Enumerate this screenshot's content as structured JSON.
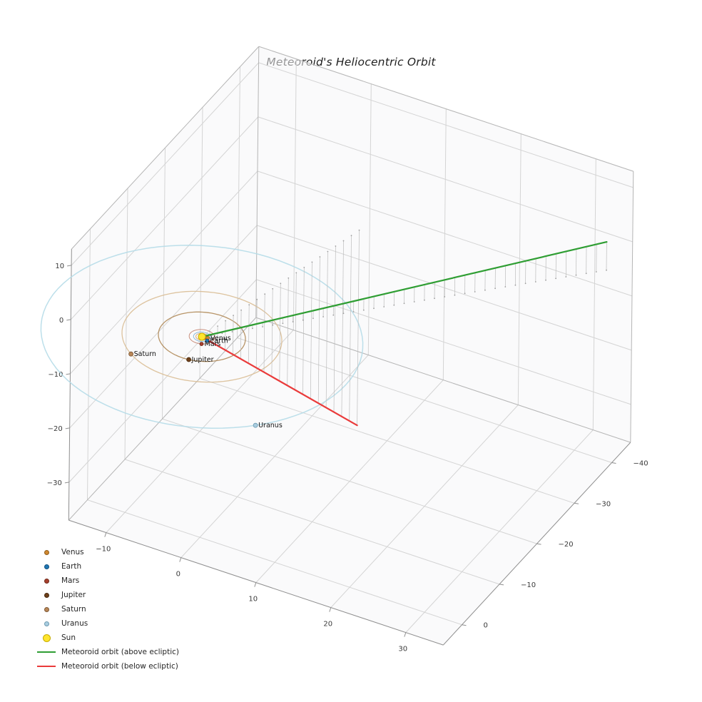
{
  "chart_data": {
    "type": "line",
    "subtype": "3d-orbit-plot",
    "title": "Meteoroid's Heliocentric Orbit",
    "grid": true,
    "legend_position": "lower-left",
    "axes": {
      "x": {
        "range": [
          -15,
          35
        ],
        "ticks": [
          {
            "v": -10,
            "label": "−10"
          },
          {
            "v": 0,
            "label": "0"
          },
          {
            "v": 10,
            "label": "10"
          },
          {
            "v": 20,
            "label": "20"
          },
          {
            "v": 30,
            "label": "30"
          }
        ]
      },
      "y": {
        "range": [
          -45,
          5
        ],
        "ticks": [
          {
            "v": -40,
            "label": "−40"
          },
          {
            "v": -30,
            "label": "−30"
          },
          {
            "v": -20,
            "label": "−20"
          },
          {
            "v": -10,
            "label": "−10"
          },
          {
            "v": 0,
            "label": "0"
          }
        ]
      },
      "z": {
        "range": [
          -37,
          13
        ],
        "ticks": [
          {
            "v": 10,
            "label": "10"
          },
          {
            "v": 0,
            "label": "0"
          },
          {
            "v": -10,
            "label": "−10"
          },
          {
            "v": -20,
            "label": "−20"
          },
          {
            "v": -30,
            "label": "−30"
          }
        ]
      }
    },
    "sun": {
      "name": "Sun",
      "color": "#ffe52e",
      "edge": "#c6ac00"
    },
    "planets": [
      {
        "name": "Venus",
        "orbit_radius_au": 0.72,
        "angle_deg": -10,
        "color": "#d0882f",
        "edge": "#8f5c1c",
        "orbit_color": "#d8a15f"
      },
      {
        "name": "Earth",
        "orbit_radius_au": 1.0,
        "angle_deg": 25,
        "color": "#1f77b4",
        "edge": "#10507e",
        "orbit_color": "#7fb2d6"
      },
      {
        "name": "Mars",
        "orbit_radius_au": 1.52,
        "angle_deg": 65,
        "color": "#a8402e",
        "edge": "#702818",
        "orbit_color": "#c4836f"
      },
      {
        "name": "Jupiter",
        "orbit_radius_au": 5.2,
        "angle_deg": 81,
        "color": "#6e401a",
        "edge": "#47290f",
        "orbit_color": "#b08a58"
      },
      {
        "name": "Saturn",
        "orbit_radius_au": 9.54,
        "angle_deg": 126,
        "color": "#b98757",
        "edge": "#7d5836",
        "orbit_color": "#d9bd93"
      },
      {
        "name": "Uranus",
        "orbit_radius_au": 19.22,
        "angle_deg": 44,
        "color": "#a9cde0",
        "edge": "#6d9ab0",
        "orbit_color": "#b5dbe8"
      }
    ],
    "meteoroid": {
      "above": {
        "label": "Meteoroid orbit (above ecliptic)",
        "color": "#2f9e33",
        "start": [
          0,
          0,
          0
        ],
        "end": [
          35,
          -38,
          5.2
        ],
        "n_samples": 40
      },
      "below": {
        "label": "Meteoroid orbit (below ecliptic)",
        "color": "#ea3b3b",
        "start": [
          0,
          0,
          0
        ],
        "end": [
          6,
          -30,
          -36
        ],
        "n_samples": 20
      },
      "stem_color": "#bdbdbd",
      "stem_dot_color": "#9e9e9e"
    },
    "legend": {
      "items": [
        {
          "label": "Venus",
          "marker": "dot",
          "color": "#d0882f",
          "edge": "#8f5c1c"
        },
        {
          "label": "Earth",
          "marker": "dot",
          "color": "#1f77b4",
          "edge": "#10507e"
        },
        {
          "label": "Mars",
          "marker": "dot",
          "color": "#a8402e",
          "edge": "#702818"
        },
        {
          "label": "Jupiter",
          "marker": "dot",
          "color": "#6e401a",
          "edge": "#47290f"
        },
        {
          "label": "Saturn",
          "marker": "dot",
          "color": "#b98757",
          "edge": "#7d5836"
        },
        {
          "label": "Uranus",
          "marker": "dot",
          "color": "#a9cde0",
          "edge": "#6d9ab0"
        },
        {
          "label": "Sun",
          "marker": "dot-large",
          "color": "#ffe52e",
          "edge": "#c6ac00"
        },
        {
          "label": "Meteoroid orbit (above ecliptic)",
          "marker": "line",
          "color": "#2f9e33"
        },
        {
          "label": "Meteoroid orbit (below ecliptic)",
          "marker": "line",
          "color": "#ea3b3b"
        }
      ]
    },
    "style_colors": {
      "grid": "#d4d4d4",
      "pane": "rgba(245,245,248,0.55)",
      "box_edge": "#b5b5b5",
      "axis_spine": "#8f8f8f",
      "tick_text": "#3a3a3a"
    }
  }
}
